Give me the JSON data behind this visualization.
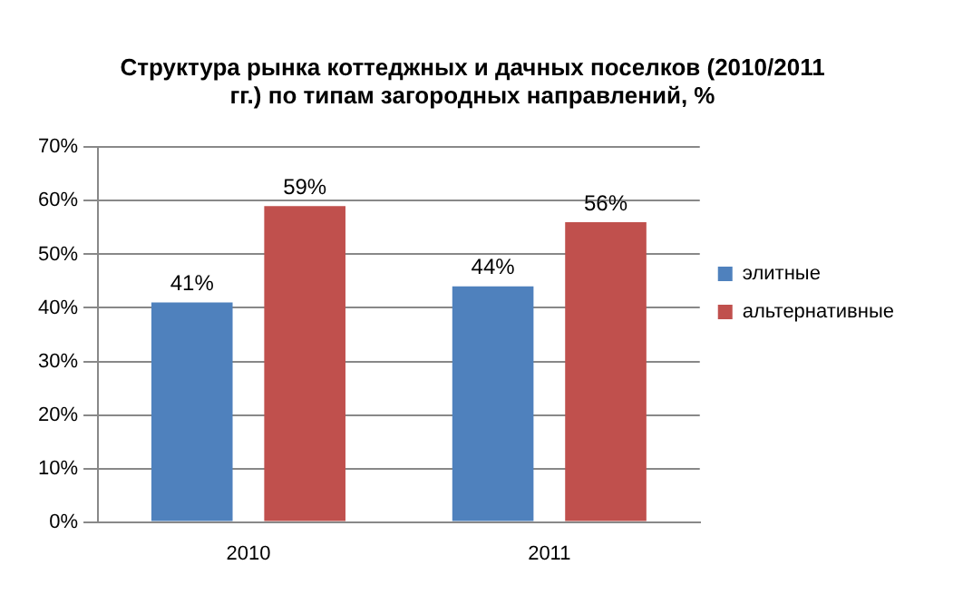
{
  "chart_data": {
    "type": "bar",
    "title": "Структура рынка коттеджных и дачных поселков (2010/2011 гг.) по типам загородных направлений, %",
    "categories": [
      "2010",
      "2011"
    ],
    "series": [
      {
        "name": "элитные",
        "color": "#4f81bd",
        "values": [
          41,
          44
        ],
        "value_labels": [
          "41%",
          "44%"
        ]
      },
      {
        "name": "альтернативные",
        "color": "#c0504d",
        "values": [
          59,
          56
        ],
        "value_labels": [
          "59%",
          "56%"
        ]
      }
    ],
    "ylim": [
      0,
      70
    ],
    "yticks": [
      {
        "value": 0,
        "label": "0%"
      },
      {
        "value": 10,
        "label": "10%"
      },
      {
        "value": 20,
        "label": "20%"
      },
      {
        "value": 30,
        "label": "30%"
      },
      {
        "value": 40,
        "label": "40%"
      },
      {
        "value": 50,
        "label": "50%"
      },
      {
        "value": 60,
        "label": "60%"
      },
      {
        "value": 70,
        "label": "70%"
      }
    ],
    "grid": "y",
    "legend": "right"
  }
}
